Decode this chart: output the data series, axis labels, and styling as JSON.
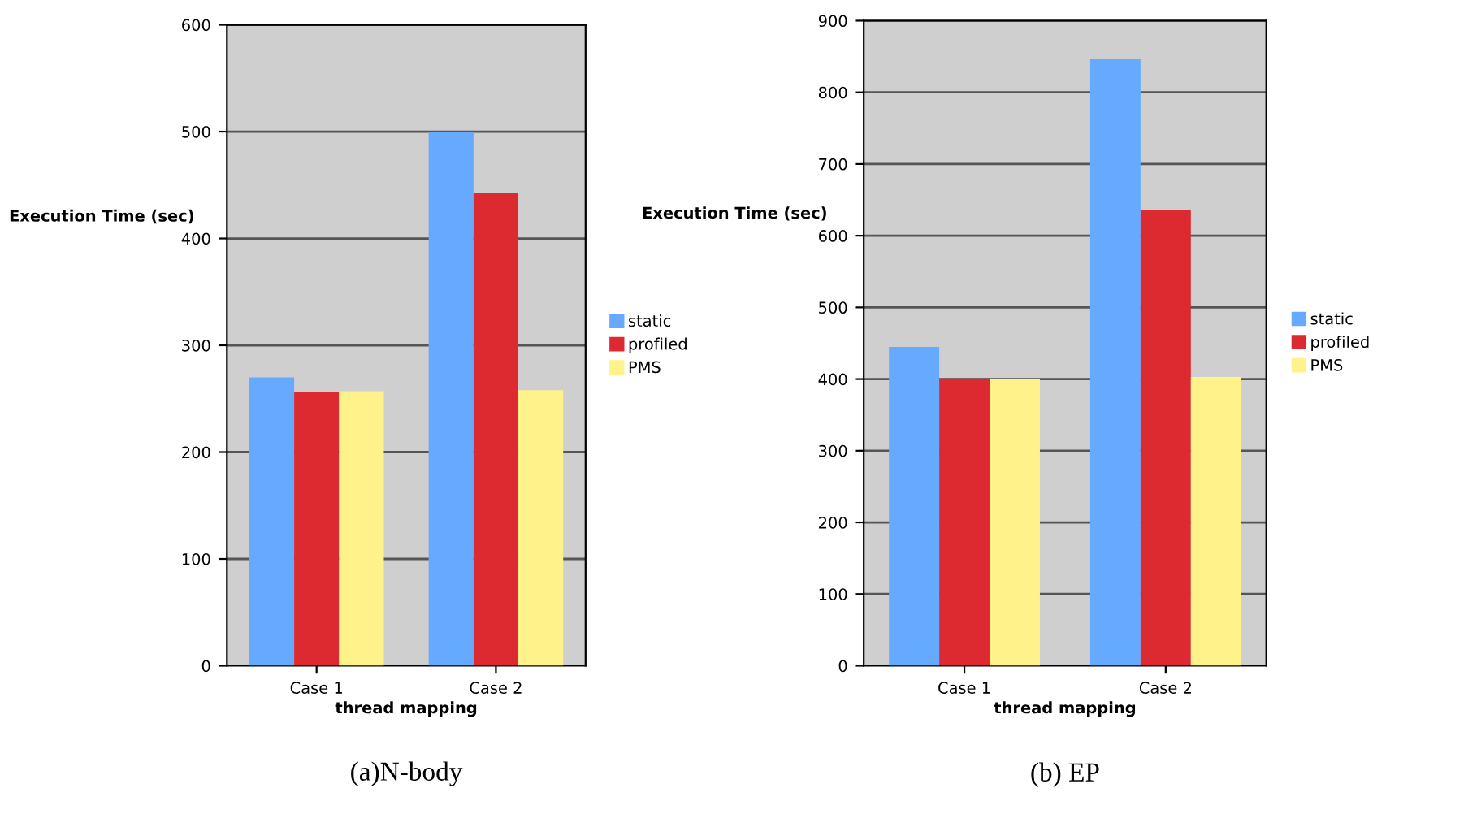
{
  "chart_data": [
    {
      "type": "bar",
      "title": "(a)N-body",
      "xlabel": "thread mapping",
      "ylabel": "Execution Time (sec)",
      "categories": [
        "Case 1",
        "Case 2"
      ],
      "series": [
        {
          "name": "static",
          "color": "#66aaff",
          "values": [
            270,
            500
          ]
        },
        {
          "name": "profiled",
          "color": "#dd2a30",
          "values": [
            256,
            443
          ]
        },
        {
          "name": "PMS",
          "color": "#fff28a",
          "values": [
            257,
            258
          ]
        }
      ],
      "ylim": [
        0,
        600
      ],
      "yticks": [
        0,
        100,
        200,
        300,
        400,
        500,
        600
      ],
      "grid": "y",
      "legend": "right"
    },
    {
      "type": "bar",
      "title": "(b) EP",
      "xlabel": "thread mapping",
      "ylabel": "Execution Time (sec)",
      "categories": [
        "Case 1",
        "Case 2"
      ],
      "series": [
        {
          "name": "static",
          "color": "#66aaff",
          "values": [
            445,
            846
          ]
        },
        {
          "name": "profiled",
          "color": "#dd2a30",
          "values": [
            401,
            636
          ]
        },
        {
          "name": "PMS",
          "color": "#fff28a",
          "values": [
            400,
            403
          ]
        }
      ],
      "ylim": [
        0,
        900
      ],
      "yticks": [
        0,
        100,
        200,
        300,
        400,
        500,
        600,
        700,
        800,
        900
      ],
      "grid": "y",
      "legend": "right"
    }
  ]
}
